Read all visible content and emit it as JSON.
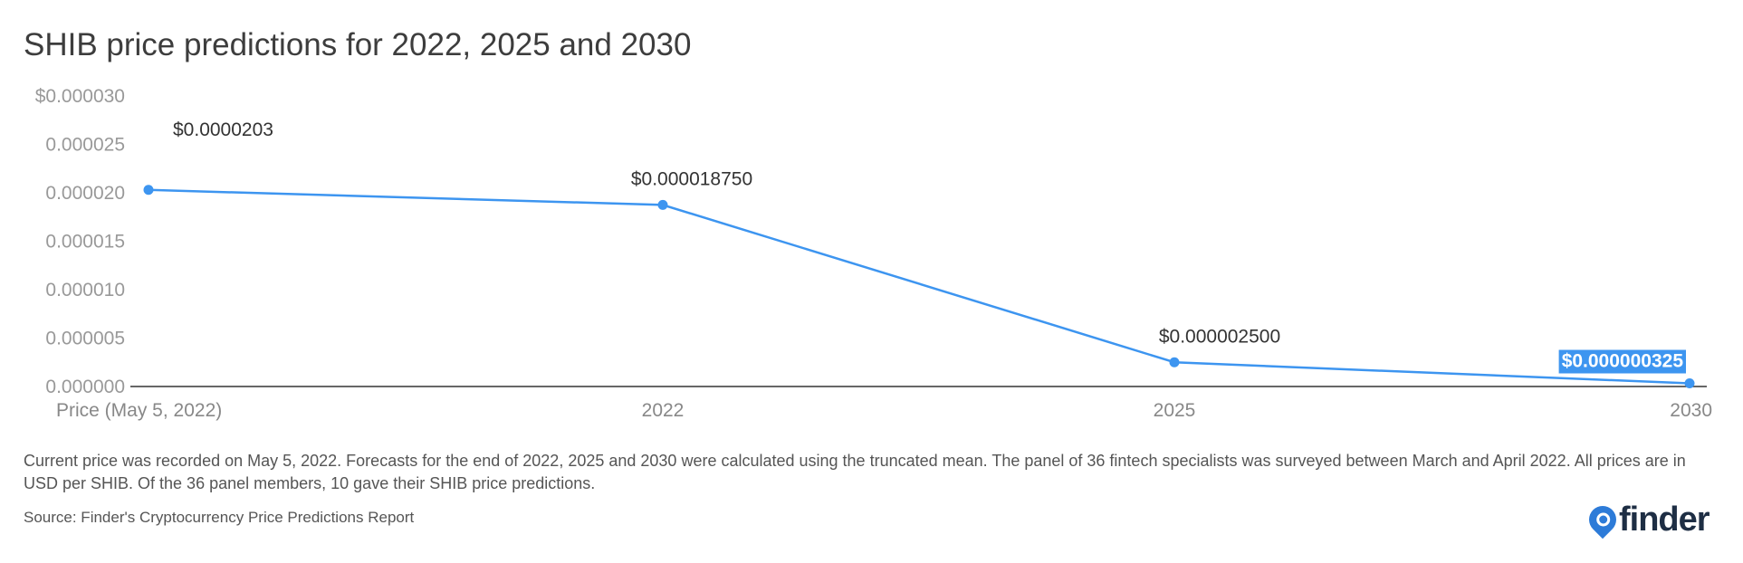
{
  "title": "SHIB price predictions for 2022, 2025 and 2030",
  "footnote": "Current price was recorded on May 5, 2022. Forecasts for the end of 2022, 2025 and 2030 were calculated using the truncated mean. The panel of 36 fintech specialists was surveyed between March and April 2022. All prices are in USD per SHIB. Of the 36 panel members, 10 gave their SHIB price predictions.",
  "source": "Source: Finder's Cryptocurrency Price Predictions Report",
  "logo": {
    "text": "finder",
    "icon": "finder-logo-icon"
  },
  "colors": {
    "line": "#3d95f0",
    "axis": "#333333",
    "tick_text": "#999999",
    "highlight_bg": "#3d95f0"
  },
  "chart_data": {
    "type": "line",
    "title": "SHIB price predictions for 2022, 2025 and 2030",
    "categories": [
      "Price (May 5, 2022)",
      "2022",
      "2025",
      "2030"
    ],
    "series": [
      {
        "values": [
          2.03e-05,
          1.875e-05,
          2.5e-06,
          3.25e-07
        ]
      }
    ],
    "data_labels": [
      "$0.0000203",
      "$0.000018750",
      "$0.000002500",
      "$0.000000325"
    ],
    "highlighted_label_index": 3,
    "yticks": [
      {
        "value": 3e-05,
        "label": "$0.000030"
      },
      {
        "value": 2.5e-05,
        "label": "0.000025"
      },
      {
        "value": 2e-05,
        "label": "0.000020"
      },
      {
        "value": 1.5e-05,
        "label": "0.000015"
      },
      {
        "value": 1e-05,
        "label": "0.000010"
      },
      {
        "value": 5e-06,
        "label": "0.000005"
      },
      {
        "value": 0.0,
        "label": "0.000000"
      }
    ],
    "ylim": [
      0,
      3e-05
    ],
    "grid": false,
    "legend": "none",
    "xlabel": "",
    "ylabel": ""
  }
}
